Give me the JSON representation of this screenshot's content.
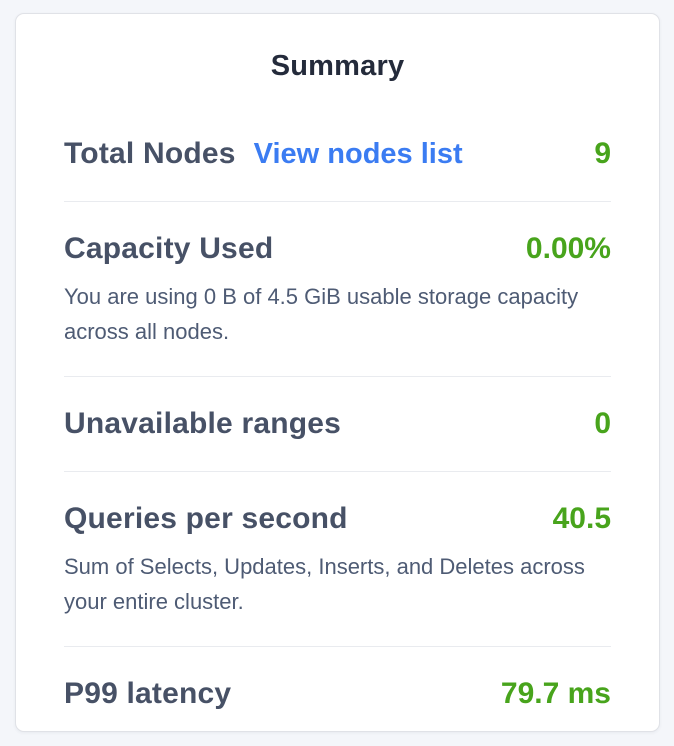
{
  "page": {
    "background_color": "#f4f6fa"
  },
  "card": {
    "title": "Summary",
    "background_color": "#ffffff",
    "border_color": "#e0e2e7",
    "divider_color": "#e9ebef"
  },
  "colors": {
    "title_text": "#242b3b",
    "label_text": "#475166",
    "description_text": "#4e5b74",
    "value_green": "#48a41c",
    "link_blue": "#3b7cf2"
  },
  "sections": [
    {
      "label": "Total Nodes",
      "link": "View nodes list",
      "value": "9"
    },
    {
      "label": "Capacity Used",
      "value": "0.00%",
      "description": "You are using 0 B of 4.5 GiB usable storage capacity across all nodes."
    },
    {
      "label": "Unavailable ranges",
      "value": "0"
    },
    {
      "label": "Queries per second",
      "value": "40.5",
      "description": "Sum of Selects, Updates, Inserts, and Deletes across your entire cluster."
    },
    {
      "label": "P99 latency",
      "value": "79.7 ms"
    }
  ]
}
